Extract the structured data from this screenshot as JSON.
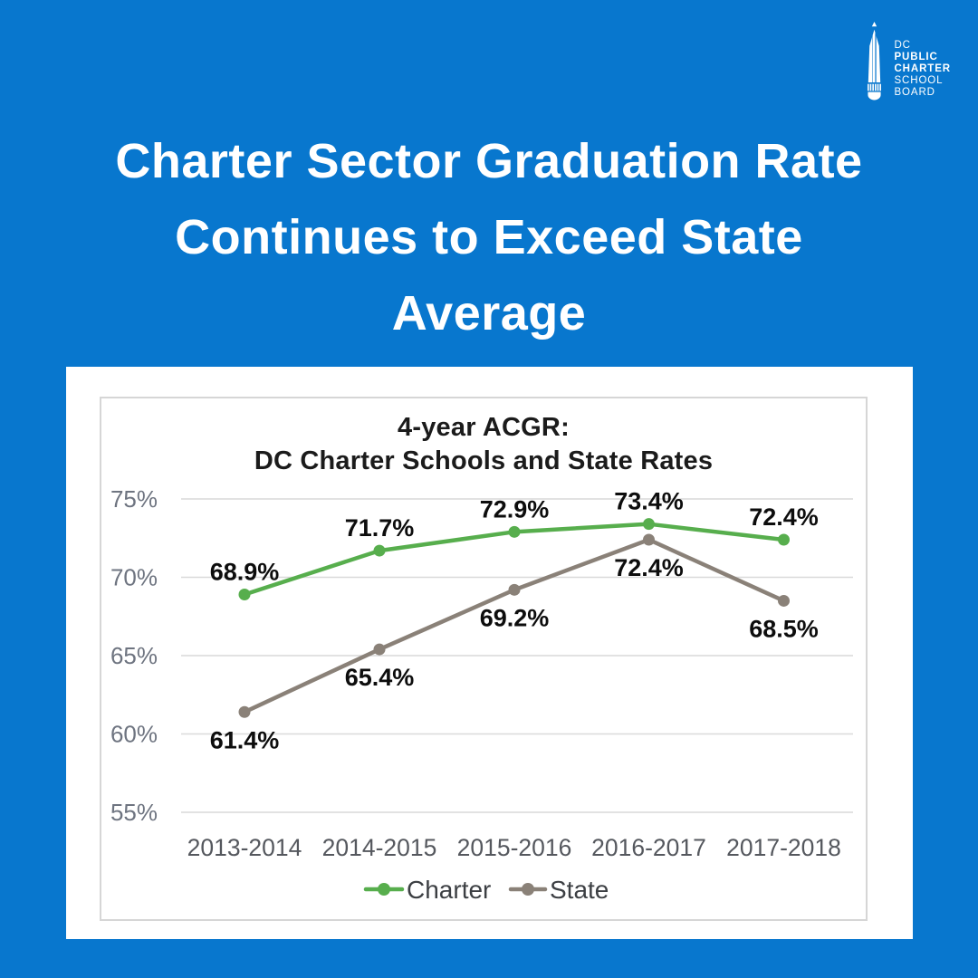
{
  "page": {
    "background_color": "#0877CE",
    "title_lines": [
      "Charter Sector Graduation Rate",
      "Continues to Exceed State",
      "Average"
    ]
  },
  "logo": {
    "icon": "pencil-monument-icon",
    "lines": [
      "DC",
      "PUBLIC",
      "CHARTER",
      "SCHOOL",
      "BOARD"
    ]
  },
  "chart_data": {
    "type": "line",
    "title_lines": [
      "4-year ACGR:",
      "DC Charter Schools and State Rates"
    ],
    "categories": [
      "2013-2014",
      "2014-2015",
      "2015-2016",
      "2016-2017",
      "2017-2018"
    ],
    "series": [
      {
        "name": "Charter",
        "color": "#57AE4D",
        "values": [
          68.9,
          71.7,
          72.9,
          73.4,
          72.4
        ],
        "label_position": "above"
      },
      {
        "name": "State",
        "color": "#8A8178",
        "values": [
          61.4,
          65.4,
          69.2,
          72.4,
          68.5
        ],
        "label_position": "below"
      }
    ],
    "ytick_values": [
      55,
      60,
      65,
      70,
      75
    ],
    "ylim": [
      55,
      76.2
    ],
    "value_suffix": "%",
    "grid": true,
    "legend_position": "bottom",
    "colors": {
      "grid": "#D9D9D9",
      "ytick": "#6E7480",
      "xtick": "#55585E",
      "data_label": "#0D0D0D",
      "legend_text": "#3C3F43",
      "title": "#1B1B1B"
    }
  }
}
